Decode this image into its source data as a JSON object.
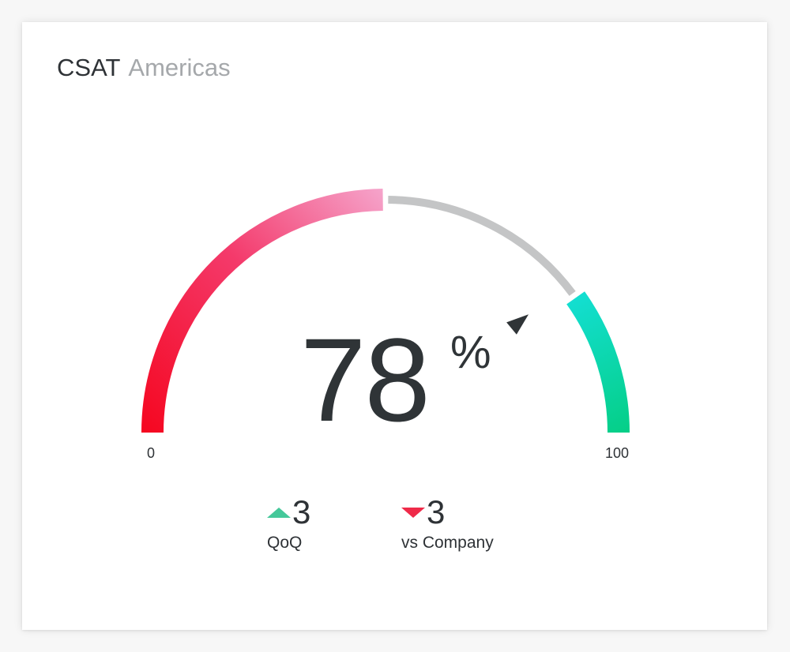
{
  "header": {
    "title": "CSAT",
    "subtitle": "Americas"
  },
  "chart_data": {
    "type": "gauge",
    "value": 78,
    "unit": "%",
    "min": 0,
    "max": 100,
    "min_label": "0",
    "max_label": "100",
    "bands": [
      {
        "from": 0,
        "to": 50,
        "color_start": "#f5061f",
        "color_end": "#f59ec7"
      },
      {
        "from": 50,
        "to": 80,
        "color": "#c4c5c6"
      },
      {
        "from": 80,
        "to": 100,
        "color_start": "#1ae6f5",
        "color_end": "#05cf88"
      }
    ],
    "marker_color": "#2f3437"
  },
  "metrics": [
    {
      "direction": "up",
      "value": "3",
      "label": "QoQ",
      "color": "#45c89a"
    },
    {
      "direction": "down",
      "value": "3",
      "label": "vs Company",
      "color": "#ef2a49"
    }
  ]
}
